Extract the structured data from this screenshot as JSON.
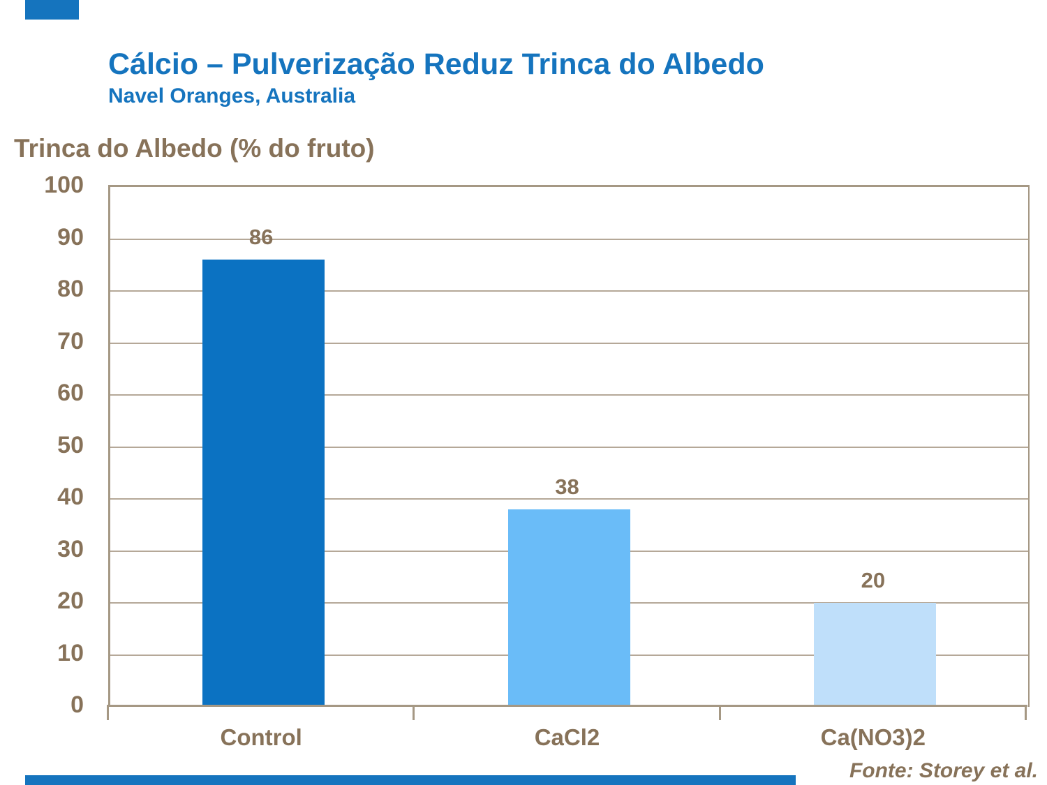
{
  "slide": {
    "title": "Cálcio – Pulverização Reduz Trinca do Albedo",
    "subtitle": "Navel Oranges, Australia",
    "source": "Fonte: Storey et al.",
    "colors": {
      "accent_blue": "#1574BE",
      "text_brown": "#877259",
      "gridline_tan": "#B5A898",
      "axis_tan": "#A59884"
    }
  },
  "chart_data": {
    "type": "bar",
    "categories": [
      "Control",
      "CaCl2",
      "Ca(NO3)2"
    ],
    "values": [
      86,
      38,
      20
    ],
    "bar_colors": [
      "#0B72C2",
      "#6ABCF8",
      "#BFDFFA"
    ],
    "title": "",
    "xlabel": "",
    "ylabel": "Trinca do Albedo (% do fruto)",
    "ylim": [
      0,
      100
    ],
    "ytick_step": 10,
    "grid": "horizontal",
    "legend": "none"
  }
}
